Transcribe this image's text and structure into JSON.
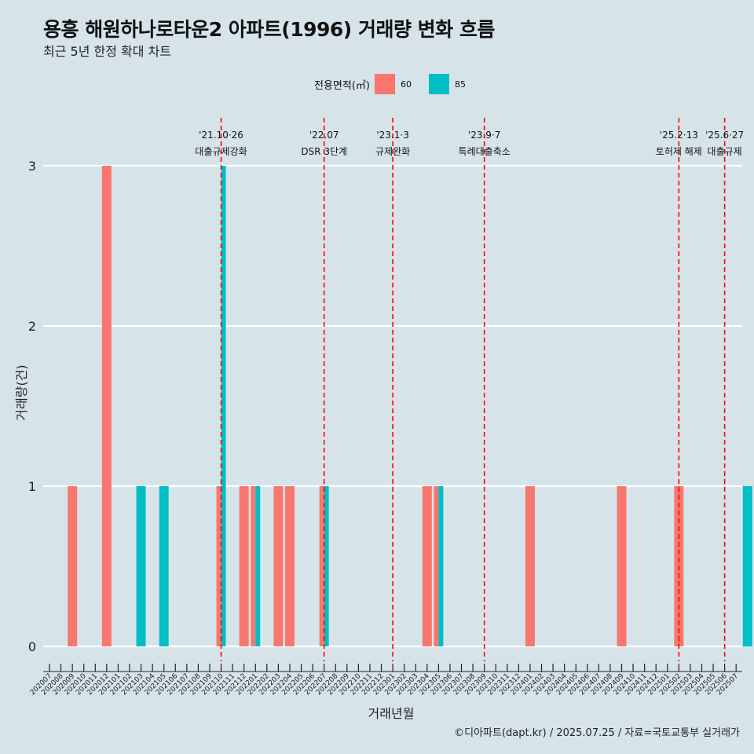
{
  "title": "용흥 해원하나로타운2 아파트(1996) 거래량 변화 흐름",
  "subtitle": "최근 5년 한정 확대 차트",
  "legend": {
    "title": "전용면적(㎡)"
  },
  "caption": "©디아파트(dapt.kr) / 2025.07.25 / 자료=국토교통부 실거래가",
  "colors": {
    "background": "#d6e4ea",
    "s60": "#f8766d",
    "s85": "#00bfc4",
    "event_line": "#ff0000",
    "grid": "#ffffff"
  },
  "chart_data": {
    "type": "bar",
    "xlabel": "거래년월",
    "ylabel": "거래량(건)",
    "ylim": [
      0,
      3
    ],
    "y_ticks": [
      0,
      1,
      2,
      3
    ],
    "grid": true,
    "legend_position": "top",
    "categories": [
      "202007",
      "202008",
      "202009",
      "202010",
      "202011",
      "202012",
      "202101",
      "202102",
      "202103",
      "202104",
      "202105",
      "202106",
      "202107",
      "202108",
      "202109",
      "202110",
      "202111",
      "202112",
      "202201",
      "202202",
      "202203",
      "202204",
      "202205",
      "202206",
      "202207",
      "202208",
      "202209",
      "202210",
      "202211",
      "202212",
      "202301",
      "202302",
      "202303",
      "202304",
      "202305",
      "202306",
      "202307",
      "202308",
      "202309",
      "202310",
      "202311",
      "202312",
      "202401",
      "202402",
      "202403",
      "202404",
      "202405",
      "202406",
      "202407",
      "202408",
      "202409",
      "202410",
      "202411",
      "202412",
      "202501",
      "202502",
      "202503",
      "202504",
      "202505",
      "202506",
      "202507"
    ],
    "series": [
      {
        "name": "60",
        "color": "#f8766d",
        "points": [
          {
            "x": "202009",
            "y": 1
          },
          {
            "x": "202012",
            "y": 3
          },
          {
            "x": "202110",
            "y": 1
          },
          {
            "x": "202112",
            "y": 1
          },
          {
            "x": "202201",
            "y": 1
          },
          {
            "x": "202203",
            "y": 1
          },
          {
            "x": "202204",
            "y": 1
          },
          {
            "x": "202207",
            "y": 1
          },
          {
            "x": "202304",
            "y": 1
          },
          {
            "x": "202305",
            "y": 1
          },
          {
            "x": "202401",
            "y": 1
          },
          {
            "x": "202409",
            "y": 1
          },
          {
            "x": "202502",
            "y": 1
          }
        ]
      },
      {
        "name": "85",
        "color": "#00bfc4",
        "points": [
          {
            "x": "202103",
            "y": 1
          },
          {
            "x": "202105",
            "y": 1
          },
          {
            "x": "202110",
            "y": 3
          },
          {
            "x": "202201",
            "y": 1
          },
          {
            "x": "202207",
            "y": 1
          },
          {
            "x": "202305",
            "y": 1
          },
          {
            "x": "202508",
            "y": 1
          }
        ]
      }
    ],
    "events": [
      {
        "x": "202110",
        "date": "'21.10·26",
        "label": "대출규제강화"
      },
      {
        "x": "202207",
        "date": "'22.07",
        "label": "DSR 3단계"
      },
      {
        "x": "202301",
        "date": "'23.1·3",
        "label": "규제완화"
      },
      {
        "x": "202309",
        "date": "'23.9·7",
        "label": "특례대출축소"
      },
      {
        "x": "202502",
        "date": "'25.2·13",
        "label": "토허제 해제"
      },
      {
        "x": "202506",
        "date": "'25.6·27",
        "label": "대출규제"
      }
    ]
  }
}
